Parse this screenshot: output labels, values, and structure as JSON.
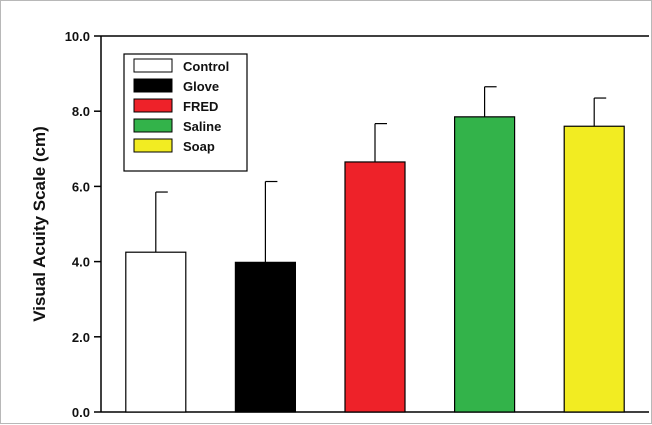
{
  "chart_data": {
    "type": "bar",
    "categories": [
      "Control",
      "Glove",
      "FRED",
      "Saline",
      "Soap"
    ],
    "values": [
      4.25,
      3.98,
      6.65,
      7.85,
      7.6
    ],
    "errors": [
      1.6,
      2.15,
      1.02,
      0.8,
      0.75
    ],
    "colors": [
      "#ffffff",
      "#000000",
      "#ee2229",
      "#33b34a",
      "#f2ec22"
    ],
    "title": "",
    "xlabel": "",
    "ylabel": "Visual Acuity Scale (cm)",
    "ylim": [
      0,
      10
    ],
    "yticks": [
      "0.0",
      "2.0",
      "4.0",
      "6.0",
      "8.0",
      "10.0"
    ],
    "grid": false,
    "legend_position": "top-left",
    "legend": [
      "Control",
      "Glove",
      "FRED",
      "Saline",
      "Soap"
    ]
  }
}
